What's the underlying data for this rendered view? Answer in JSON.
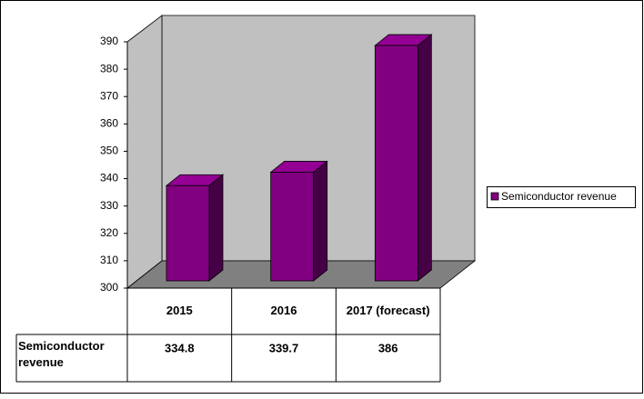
{
  "chart_data": {
    "type": "bar3d",
    "categories": [
      "2015",
      "2016",
      "2017 (forecast)"
    ],
    "series": [
      {
        "name": "Semiconductor revenue",
        "color": "#800080",
        "values": [
          334.8,
          339.7,
          386
        ]
      }
    ],
    "ylim": [
      300,
      390
    ],
    "yticks": [
      300,
      310,
      320,
      330,
      340,
      350,
      360,
      370,
      380,
      390
    ],
    "legend": "right",
    "data_table": true
  }
}
